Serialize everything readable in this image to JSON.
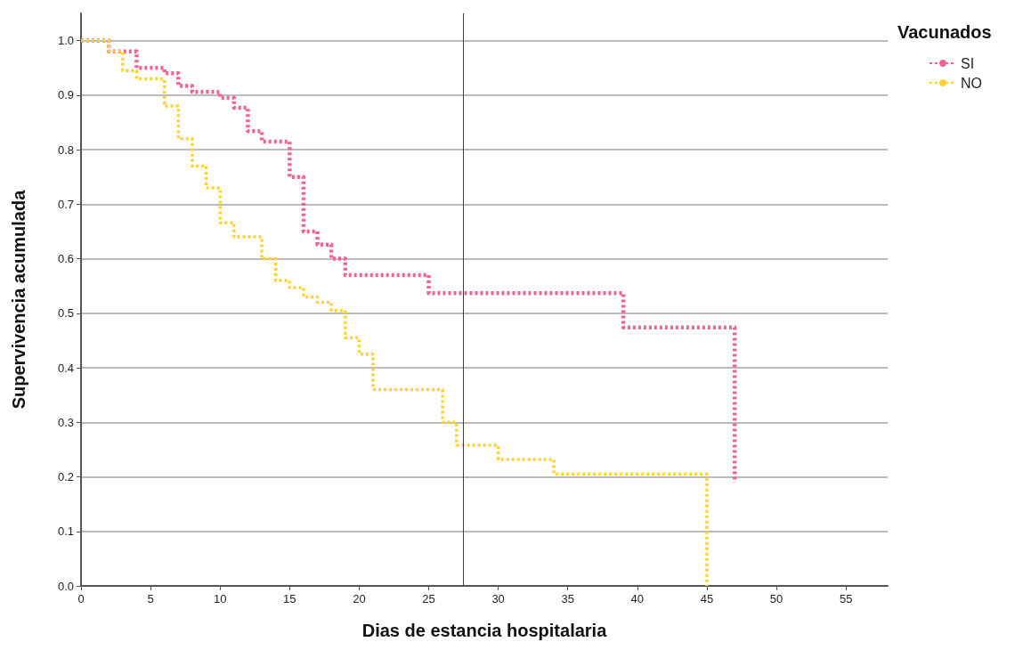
{
  "chart_data": {
    "type": "step",
    "xlabel": "Dias de estancia hospitalaria",
    "ylabel": "Supervivencia acumulada",
    "legend_title": "Vacunados",
    "legend": "top right",
    "grid": "y",
    "line_style": "dotted",
    "marker": "none",
    "xlim": [
      0,
      58
    ],
    "xticks": [
      0,
      5,
      10,
      15,
      20,
      25,
      30,
      35,
      40,
      45,
      50,
      55
    ],
    "ylim": [
      0,
      1.05
    ],
    "yticks": [
      {
        "value": 0,
        "label": "0.0"
      },
      {
        "value": 0.1,
        "label": "0.1"
      },
      {
        "value": 0.2,
        "label": "0.2"
      },
      {
        "value": 0.3,
        "label": "0.3"
      },
      {
        "value": 0.4,
        "label": "0.4"
      },
      {
        "value": 0.5,
        "label": "0.5"
      },
      {
        "value": 0.6,
        "label": "0.6"
      },
      {
        "value": 0.7,
        "label": "0.7"
      },
      {
        "value": 0.8,
        "label": "0.8"
      },
      {
        "value": 0.9,
        "label": "0.9"
      },
      {
        "value": 1,
        "label": "1.0"
      }
    ],
    "ref_lines": [
      {
        "axis": "x",
        "value": 27.5,
        "color": "#404040",
        "line_style": "solid"
      }
    ],
    "series": [
      {
        "name": "SI",
        "color": "#f0648c",
        "x": [
          0,
          2,
          4,
          6,
          7,
          8,
          10,
          11,
          12,
          13,
          15,
          16,
          17,
          18,
          19,
          25,
          39,
          47
        ],
        "values": [
          1.0,
          0.98,
          0.95,
          0.94,
          0.917,
          0.906,
          0.895,
          0.877,
          0.834,
          0.815,
          0.75,
          0.65,
          0.626,
          0.6,
          0.57,
          0.537,
          0.474,
          0.19
        ]
      },
      {
        "name": "NO",
        "color": "#ffd232",
        "x": [
          0,
          2,
          3,
          4,
          6,
          7,
          8,
          9,
          10,
          11,
          13,
          14,
          15,
          16,
          17,
          18,
          19,
          20,
          21,
          26,
          27,
          30,
          34,
          45
        ],
        "values": [
          1.0,
          0.98,
          0.945,
          0.93,
          0.88,
          0.82,
          0.77,
          0.73,
          0.666,
          0.64,
          0.6,
          0.56,
          0.547,
          0.53,
          0.52,
          0.505,
          0.455,
          0.425,
          0.36,
          0.3,
          0.258,
          0.232,
          0.205,
          0
        ]
      }
    ]
  }
}
